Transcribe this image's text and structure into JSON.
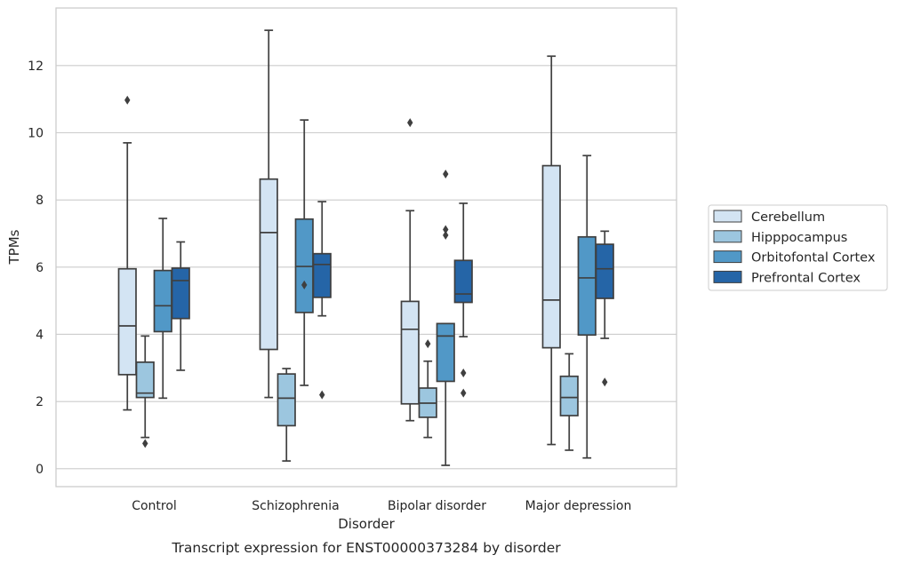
{
  "chart_data": {
    "type": "box",
    "title": "",
    "caption": "Transcript expression for ENST00000373284 by disorder",
    "xlabel": "Disorder",
    "ylabel": "TPMs",
    "ylim": [
      -0.5,
      13.8
    ],
    "yticks": [
      0,
      2,
      4,
      6,
      8,
      10,
      12
    ],
    "grid": "horizontal",
    "legend_position": "right",
    "categories": [
      "Control",
      "Schizophrenia",
      "Bipolar disorder",
      "Major depression"
    ],
    "series": [
      {
        "name": "Cerebellum",
        "color": "#d3e4f3",
        "boxes": [
          {
            "whislo": 1.75,
            "q1": 2.8,
            "med": 4.25,
            "q3": 5.95,
            "whishi": 9.7,
            "fliers": [
              10.97
            ]
          },
          {
            "whislo": 2.12,
            "q1": 3.55,
            "med": 7.03,
            "q3": 8.62,
            "whishi": 13.05,
            "fliers": []
          },
          {
            "whislo": 1.43,
            "q1": 1.93,
            "med": 4.15,
            "q3": 4.98,
            "whishi": 7.68,
            "fliers": [
              10.3
            ]
          },
          {
            "whislo": 0.72,
            "q1": 3.6,
            "med": 5.02,
            "q3": 9.02,
            "whishi": 12.28,
            "fliers": []
          }
        ]
      },
      {
        "name": "Hipppocampus",
        "color": "#9cc6df",
        "boxes": [
          {
            "whislo": 0.93,
            "q1": 2.12,
            "med": 2.25,
            "q3": 3.17,
            "whishi": 3.95,
            "fliers": [
              0.75
            ]
          },
          {
            "whislo": 0.23,
            "q1": 1.28,
            "med": 2.1,
            "q3": 2.82,
            "whishi": 2.98,
            "fliers": []
          },
          {
            "whislo": 0.93,
            "q1": 1.53,
            "med": 1.95,
            "q3": 2.4,
            "whishi": 3.2,
            "fliers": [
              3.72
            ]
          },
          {
            "whislo": 0.55,
            "q1": 1.58,
            "med": 2.12,
            "q3": 2.75,
            "whishi": 3.42,
            "fliers": []
          }
        ]
      },
      {
        "name": "Orbitofontal Cortex",
        "color": "#5198c7",
        "boxes": [
          {
            "whislo": 2.1,
            "q1": 4.08,
            "med": 4.85,
            "q3": 5.9,
            "whishi": 7.45,
            "fliers": []
          },
          {
            "whislo": 2.48,
            "q1": 4.65,
            "med": 6.02,
            "q3": 7.43,
            "whishi": 10.38,
            "fliers": [
              5.47
            ]
          },
          {
            "whislo": 0.1,
            "q1": 2.6,
            "med": 3.95,
            "q3": 4.32,
            "whishi": 4.32,
            "fliers": [
              6.95,
              7.12,
              8.77
            ]
          },
          {
            "whislo": 0.32,
            "q1": 3.98,
            "med": 5.68,
            "q3": 6.9,
            "whishi": 9.32,
            "fliers": []
          }
        ]
      },
      {
        "name": "Prefrontal Cortex",
        "color": "#2565a7",
        "boxes": [
          {
            "whislo": 2.93,
            "q1": 4.47,
            "med": 5.6,
            "q3": 5.97,
            "whishi": 6.75,
            "fliers": []
          },
          {
            "whislo": 4.55,
            "q1": 5.1,
            "med": 6.08,
            "q3": 6.4,
            "whishi": 7.95,
            "fliers": [
              2.2
            ]
          },
          {
            "whislo": 3.93,
            "q1": 4.95,
            "med": 5.2,
            "q3": 6.2,
            "whishi": 7.9,
            "fliers": [
              2.25,
              2.85
            ]
          },
          {
            "whislo": 3.88,
            "q1": 5.07,
            "med": 5.95,
            "q3": 6.68,
            "whishi": 7.07,
            "fliers": [
              2.58
            ]
          }
        ]
      }
    ]
  }
}
